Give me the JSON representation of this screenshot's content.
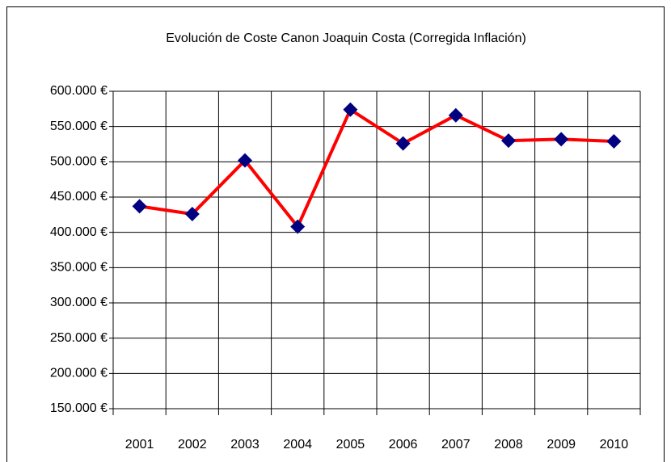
{
  "chart_data": {
    "type": "line",
    "title": "Evolución de Coste Canon Joaquin Costa (Corregida Inflación)",
    "categories": [
      "2001",
      "2002",
      "2003",
      "2004",
      "2005",
      "2006",
      "2007",
      "2008",
      "2009",
      "2010"
    ],
    "series": [
      {
        "color": "#ff0000",
        "marker_color": "#000080",
        "values": [
          437000,
          426000,
          502000,
          408000,
          574000,
          526000,
          566000,
          530000,
          532000,
          529000
        ]
      }
    ],
    "ylim": [
      150000,
      600000
    ],
    "yticks": [
      {
        "value": 150000,
        "label": "150.000 €"
      },
      {
        "value": 200000,
        "label": "200.000 €"
      },
      {
        "value": 250000,
        "label": "250.000 €"
      },
      {
        "value": 300000,
        "label": "300.000 €"
      },
      {
        "value": 350000,
        "label": "350.000 €"
      },
      {
        "value": 400000,
        "label": "400.000 €"
      },
      {
        "value": 450000,
        "label": "450.000 €"
      },
      {
        "value": 500000,
        "label": "500.000 €"
      },
      {
        "value": 550000,
        "label": "550.000 €"
      },
      {
        "value": 600000,
        "label": "600.000 €"
      }
    ],
    "grid": true
  }
}
